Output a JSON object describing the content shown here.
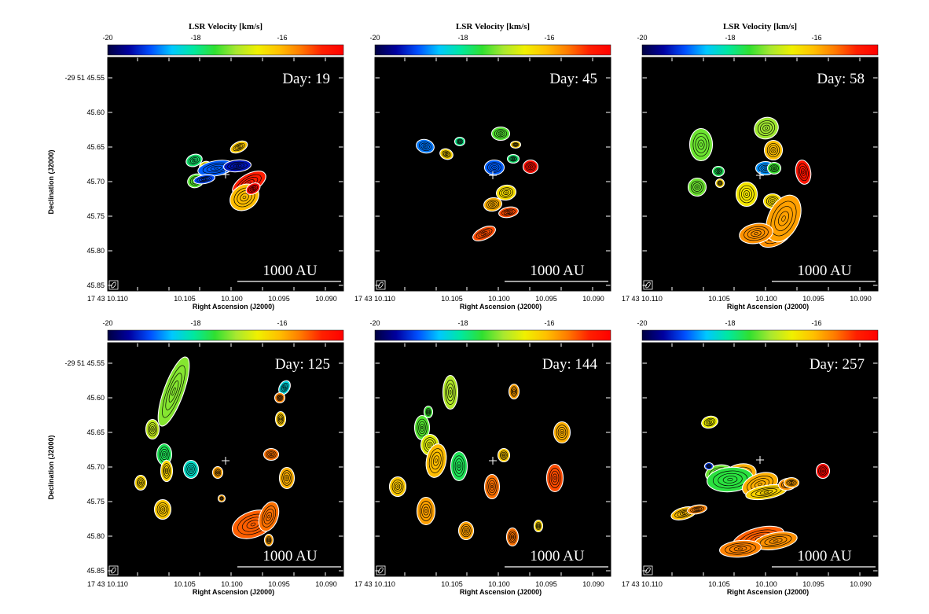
{
  "figure": {
    "colorbar": {
      "title": "LSR Velocity [km/s]",
      "tick_labels": [
        "-20",
        "-18",
        "-16"
      ],
      "tick_values": [
        -20,
        -18,
        -16
      ],
      "range": [
        -20,
        -14.8
      ],
      "colormap": [
        "#000040",
        "#0000a0",
        "#0050ff",
        "#00c8ff",
        "#00e8a0",
        "#30e030",
        "#a8e830",
        "#f0f000",
        "#ffc000",
        "#ff7a00",
        "#ff2000",
        "#ff0000"
      ]
    },
    "x_axis": {
      "label": "Right Ascension (J2000)",
      "tick_labels": [
        "17 43 10.110",
        "10.105",
        "10.100",
        "10.095",
        "10.090"
      ]
    },
    "y_axis": {
      "label": "Declination (J2000)",
      "tick_labels": [
        "-29 51 45.55",
        "45.60",
        "45.65",
        "45.70",
        "45.75",
        "45.80",
        "45.85"
      ]
    },
    "scale_bar_label": "1000 AU",
    "panels": [
      {
        "day_label": "Day: 19"
      },
      {
        "day_label": "Day: 45"
      },
      {
        "day_label": "Day: 58"
      },
      {
        "day_label": "Day: 125"
      },
      {
        "day_label": "Day: 144"
      },
      {
        "day_label": "Day: 257"
      }
    ],
    "colors": {
      "background": "#000000",
      "contour": "#ffffff",
      "page": "#ffffff"
    }
  }
}
